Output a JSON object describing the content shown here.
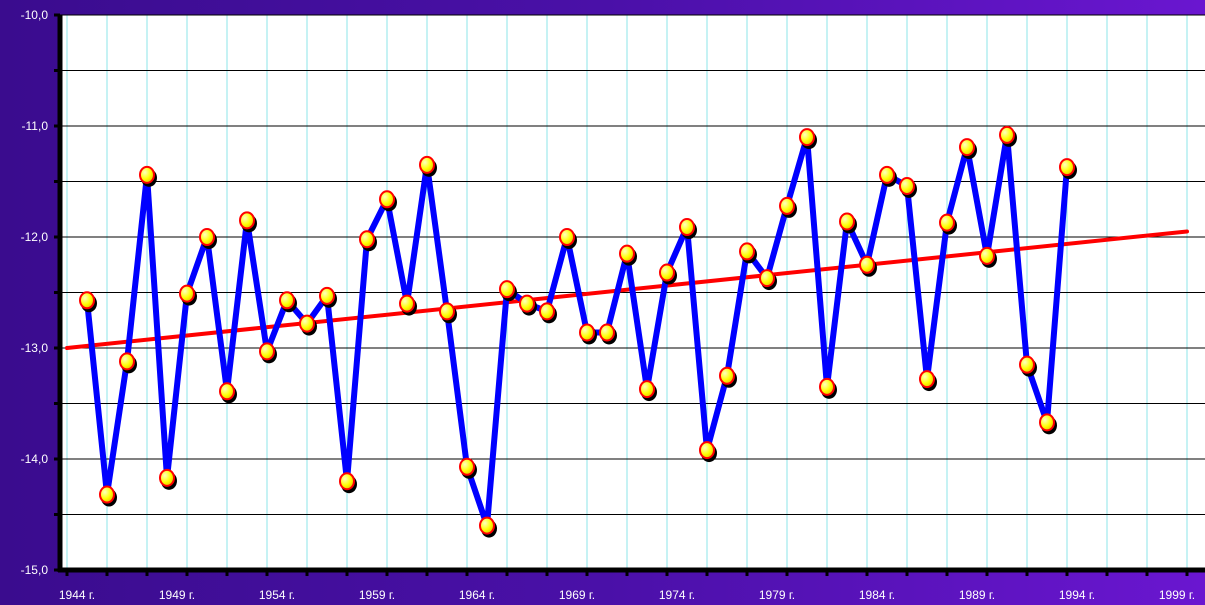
{
  "chart_data": {
    "type": "line",
    "title": "",
    "xlabel": "",
    "ylabel": "",
    "x_tick_labels": [
      "1944 г.",
      "1949 г.",
      "1954 г.",
      "1959 г.",
      "1964 г.",
      "1969 г.",
      "1974 г.",
      "1979 г.",
      "1984 г.",
      "1989 г.",
      "1994 г.",
      "1999 г."
    ],
    "y_tick_labels": [
      "-10,0",
      "-11,0",
      "-12,0",
      "-13,0",
      "-14,0",
      "-15,0"
    ],
    "xlim": [
      1944,
      2000
    ],
    "ylim": [
      -15.0,
      -10.0
    ],
    "grid": true,
    "series": [
      {
        "x": [
          1945,
          1946,
          1947,
          1948,
          1949,
          1950,
          1951,
          1952,
          1953,
          1954,
          1955,
          1956,
          1957,
          1958,
          1959,
          1960,
          1961,
          1962,
          1963,
          1964,
          1965,
          1966,
          1967,
          1968,
          1969,
          1970,
          1971,
          1972,
          1973,
          1974,
          1975,
          1976,
          1977,
          1978,
          1979,
          1980,
          1981,
          1982,
          1983,
          1984,
          1985,
          1986,
          1987,
          1988,
          1989,
          1990,
          1991,
          1992,
          1993,
          1994
        ],
        "values": [
          -12.57,
          -14.32,
          -13.12,
          -11.44,
          -14.17,
          -12.51,
          -12.0,
          -13.39,
          -11.85,
          -13.03,
          -12.57,
          -12.78,
          -12.53,
          -14.2,
          -12.02,
          -11.66,
          -12.6,
          -11.35,
          -12.67,
          -14.07,
          -14.6,
          -12.47,
          -12.6,
          -12.67,
          -12.0,
          -12.86,
          -12.86,
          -12.15,
          -13.37,
          -12.32,
          -11.91,
          -13.92,
          -13.25,
          -12.13,
          -12.37,
          -11.72,
          -11.1,
          -13.35,
          -11.86,
          -12.25,
          -11.44,
          -11.54,
          -13.28,
          -11.87,
          -11.19,
          -12.17,
          -11.08,
          -13.15,
          -13.67,
          -11.37
        ],
        "color": "#0000ff",
        "marker_color": "#ffff00"
      },
      {
        "x": [
          1944,
          2000
        ],
        "values": [
          -13.0,
          -11.95
        ],
        "color": "#ff0000"
      }
    ]
  }
}
